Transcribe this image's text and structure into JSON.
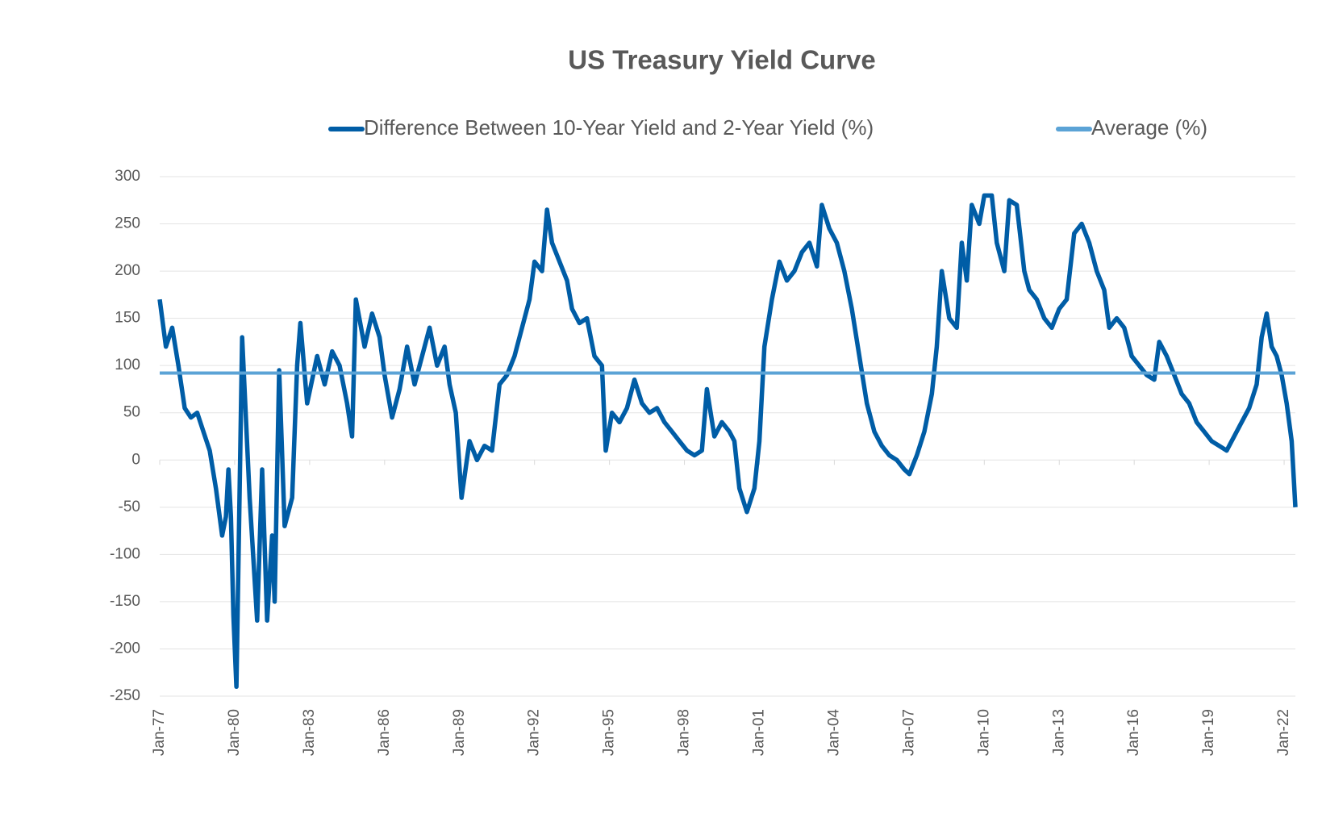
{
  "chart_data": {
    "type": "line",
    "title": "US Treasury Yield Curve",
    "xlim": [
      1977,
      2022.45
    ],
    "xticks": [
      {
        "value": 1977,
        "label": "Jan-77"
      },
      {
        "value": 1980,
        "label": "Jan-80"
      },
      {
        "value": 1983,
        "label": "Jan-83"
      },
      {
        "value": 1986,
        "label": "Jan-86"
      },
      {
        "value": 1989,
        "label": "Jan-89"
      },
      {
        "value": 1992,
        "label": "Jan-92"
      },
      {
        "value": 1995,
        "label": "Jan-95"
      },
      {
        "value": 1998,
        "label": "Jan-98"
      },
      {
        "value": 2001,
        "label": "Jan-01"
      },
      {
        "value": 2004,
        "label": "Jan-04"
      },
      {
        "value": 2007,
        "label": "Jan-07"
      },
      {
        "value": 2010,
        "label": "Jan-10"
      },
      {
        "value": 2013,
        "label": "Jan-13"
      },
      {
        "value": 2016,
        "label": "Jan-16"
      },
      {
        "value": 2019,
        "label": "Jan-19"
      },
      {
        "value": 2022,
        "label": "Jan-22"
      }
    ],
    "ylim": [
      -250,
      300
    ],
    "yticks": [
      -250,
      -200,
      -150,
      -100,
      -50,
      0,
      50,
      100,
      150,
      200,
      250,
      300
    ],
    "grid": true,
    "legend": "top",
    "series": [
      {
        "name": "Difference Between 10-Year Yield and 2-Year Yield (%)",
        "color": "#005da6",
        "x": [
          1977.0,
          1977.25,
          1977.5,
          1977.75,
          1978.0,
          1978.25,
          1978.5,
          1978.75,
          1979.0,
          1979.25,
          1979.5,
          1979.65,
          1979.75,
          1979.85,
          1979.95,
          1980.07,
          1980.3,
          1980.6,
          1980.9,
          1981.1,
          1981.3,
          1981.5,
          1981.6,
          1981.78,
          1982.0,
          1982.3,
          1982.5,
          1982.63,
          1982.9,
          1983.3,
          1983.6,
          1983.9,
          1984.2,
          1984.5,
          1984.7,
          1984.85,
          1985.2,
          1985.5,
          1985.8,
          1986.0,
          1986.3,
          1986.6,
          1986.9,
          1987.2,
          1987.5,
          1987.8,
          1988.1,
          1988.4,
          1988.6,
          1988.85,
          1989.08,
          1989.4,
          1989.7,
          1990.0,
          1990.3,
          1990.6,
          1990.9,
          1991.2,
          1991.5,
          1991.8,
          1992.0,
          1992.3,
          1992.5,
          1992.7,
          1993.0,
          1993.3,
          1993.5,
          1993.8,
          1994.1,
          1994.4,
          1994.7,
          1994.85,
          1995.1,
          1995.4,
          1995.7,
          1996.0,
          1996.3,
          1996.6,
          1996.9,
          1997.2,
          1997.5,
          1997.8,
          1998.1,
          1998.4,
          1998.7,
          1998.9,
          1999.2,
          1999.5,
          1999.8,
          2000.0,
          2000.2,
          2000.5,
          2000.8,
          2001.0,
          2001.2,
          2001.5,
          2001.8,
          2002.1,
          2002.4,
          2002.7,
          2003.0,
          2003.3,
          2003.5,
          2003.8,
          2004.1,
          2004.4,
          2004.7,
          2005.0,
          2005.3,
          2005.6,
          2005.9,
          2006.2,
          2006.5,
          2006.8,
          2007.0,
          2007.3,
          2007.6,
          2007.9,
          2008.1,
          2008.3,
          2008.6,
          2008.9,
          2009.1,
          2009.3,
          2009.5,
          2009.8,
          2010.0,
          2010.3,
          2010.5,
          2010.8,
          2011.0,
          2011.3,
          2011.6,
          2011.8,
          2012.1,
          2012.4,
          2012.7,
          2013.0,
          2013.3,
          2013.6,
          2013.9,
          2014.2,
          2014.5,
          2014.8,
          2015.0,
          2015.3,
          2015.6,
          2015.9,
          2016.2,
          2016.5,
          2016.8,
          2017.0,
          2017.3,
          2017.6,
          2017.9,
          2018.2,
          2018.5,
          2018.8,
          2019.1,
          2019.4,
          2019.7,
          2020.0,
          2020.3,
          2020.6,
          2020.9,
          2021.1,
          2021.3,
          2021.5,
          2021.7,
          2021.9,
          2022.1,
          2022.3,
          2022.45
        ],
        "values": [
          170,
          120,
          140,
          100,
          55,
          45,
          50,
          30,
          10,
          -30,
          -80,
          -60,
          -10,
          -60,
          -165,
          -240,
          130,
          -40,
          -170,
          -10,
          -170,
          -80,
          -150,
          95,
          -70,
          -40,
          100,
          145,
          60,
          110,
          80,
          115,
          100,
          60,
          25,
          170,
          120,
          155,
          130,
          90,
          45,
          75,
          120,
          80,
          110,
          140,
          100,
          120,
          80,
          50,
          -40,
          20,
          0,
          15,
          10,
          80,
          90,
          110,
          140,
          170,
          210,
          200,
          265,
          230,
          210,
          190,
          160,
          145,
          150,
          110,
          100,
          10,
          50,
          40,
          55,
          85,
          60,
          50,
          55,
          40,
          30,
          20,
          10,
          5,
          10,
          75,
          25,
          40,
          30,
          20,
          -30,
          -55,
          -30,
          20,
          120,
          170,
          210,
          190,
          200,
          220,
          230,
          205,
          270,
          245,
          230,
          200,
          160,
          110,
          60,
          30,
          15,
          5,
          0,
          -10,
          -15,
          5,
          30,
          70,
          120,
          200,
          150,
          140,
          230,
          190,
          270,
          250,
          280,
          280,
          230,
          200,
          275,
          270,
          200,
          180,
          170,
          150,
          140,
          160,
          170,
          240,
          250,
          230,
          200,
          180,
          140,
          150,
          140,
          110,
          100,
          90,
          85,
          125,
          110,
          90,
          70,
          60,
          40,
          30,
          20,
          15,
          10,
          25,
          40,
          55,
          80,
          130,
          155,
          120,
          110,
          90,
          60,
          20,
          -50
        ]
      },
      {
        "name": "Average (%)",
        "color": "#5ba3d6",
        "x": [
          1977,
          2022.45
        ],
        "values": [
          92,
          92
        ]
      }
    ]
  }
}
